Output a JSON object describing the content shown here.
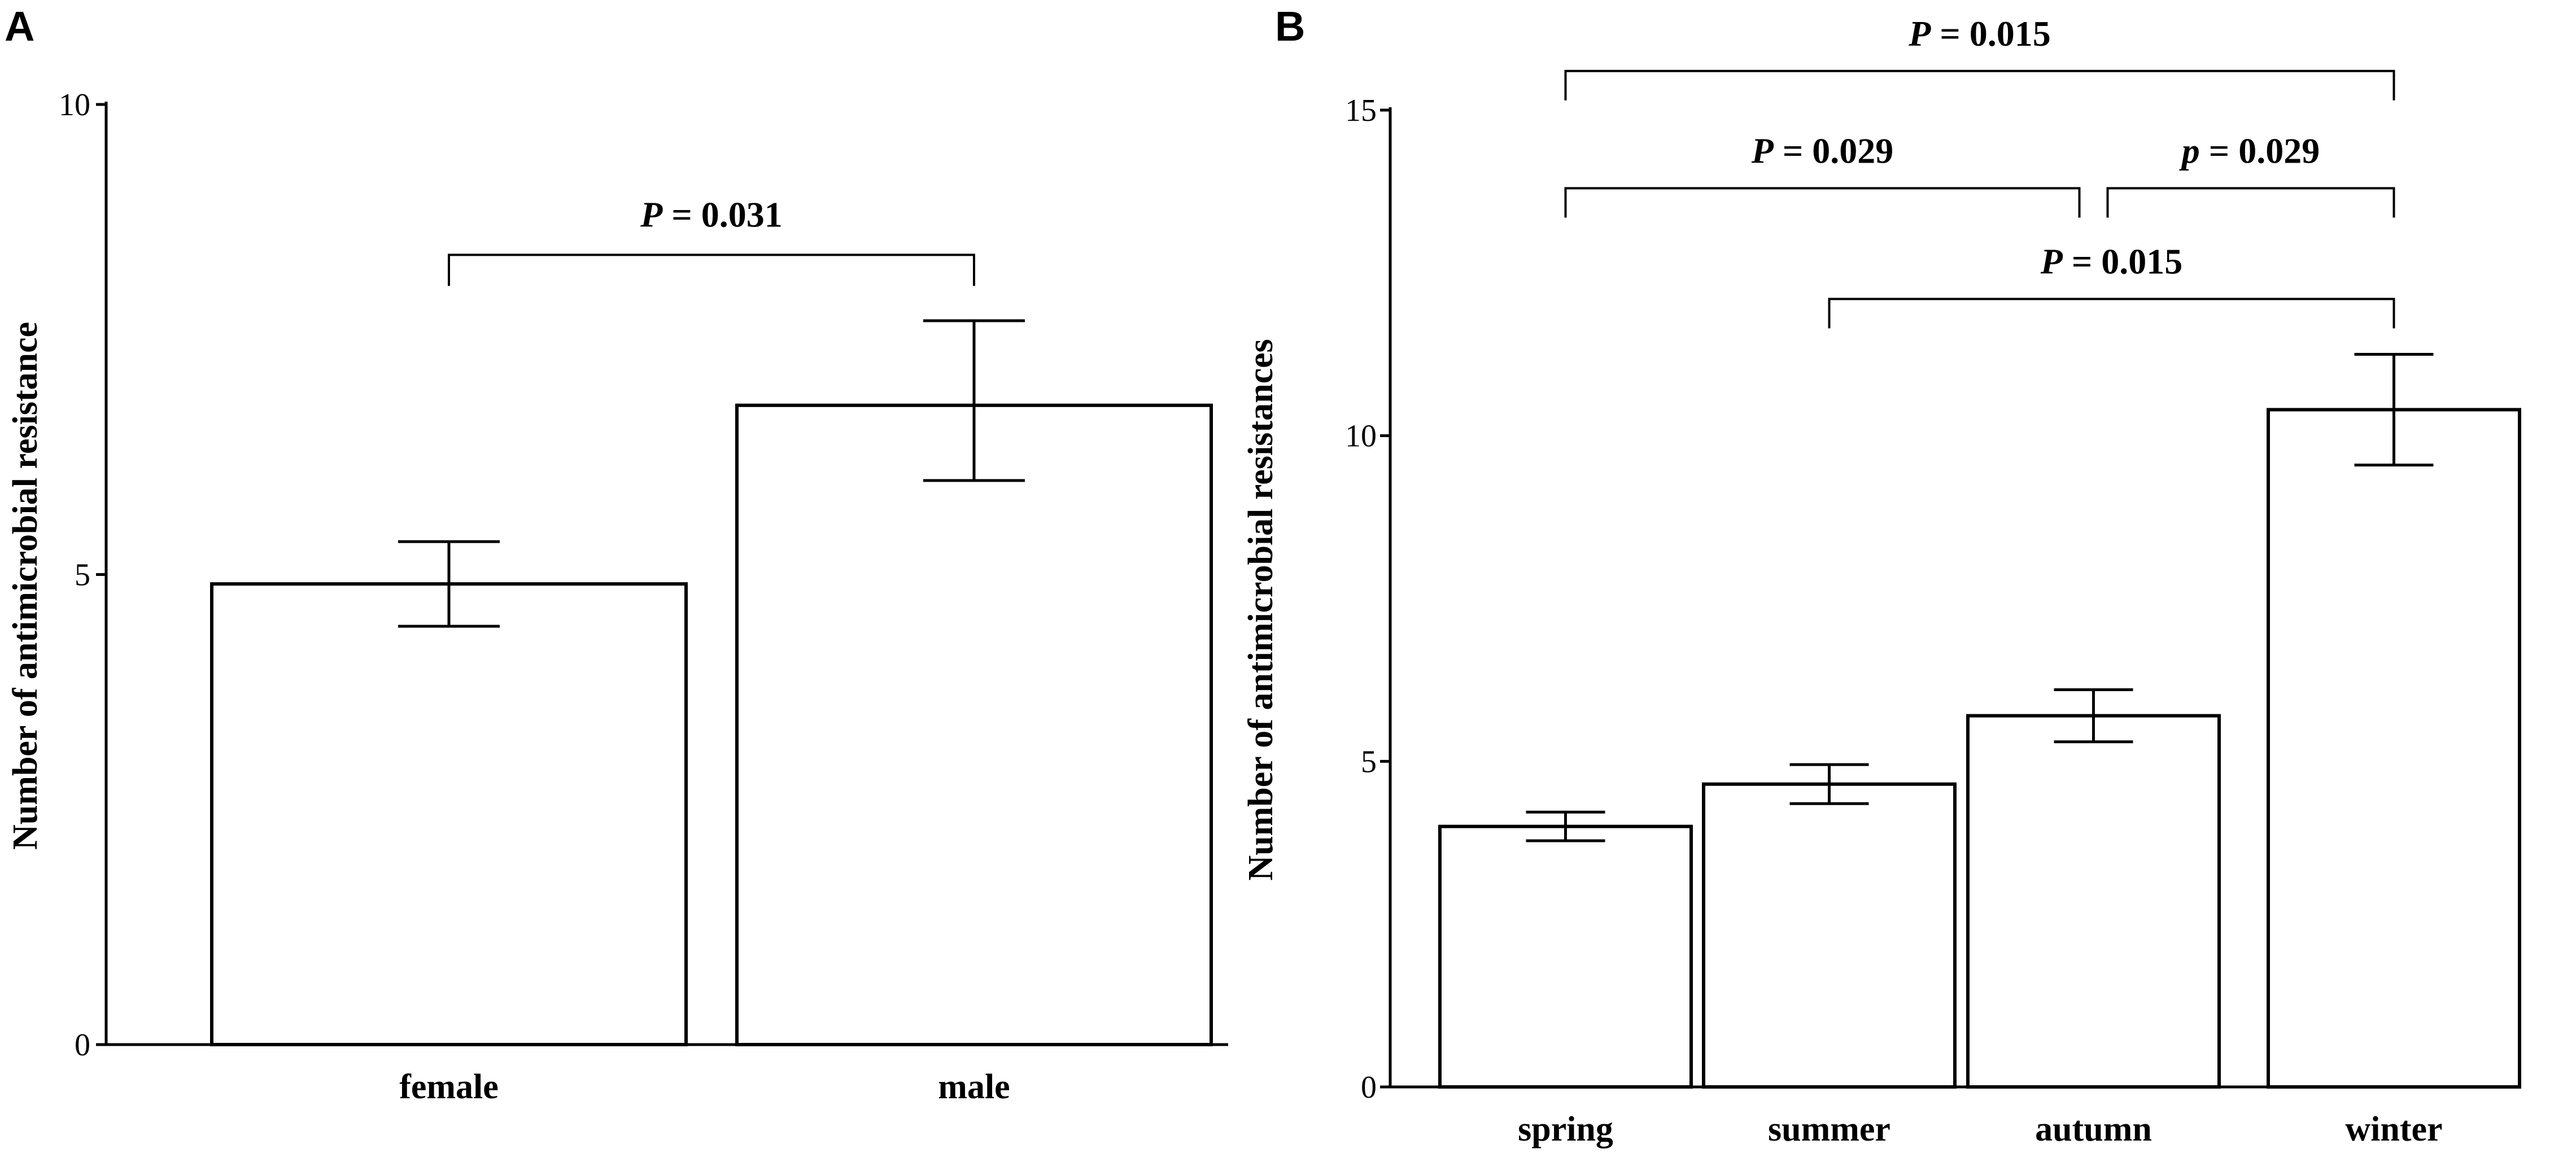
{
  "chart_data": [
    {
      "panel": "A",
      "type": "bar",
      "ylabel": "Number of antimicrobial resistance",
      "ylim": [
        0,
        10
      ],
      "yticks": [
        0,
        5,
        10
      ],
      "categories": [
        "female",
        "male"
      ],
      "values": [
        4.9,
        6.8
      ],
      "errors": [
        {
          "low": 4.45,
          "high": 5.35
        },
        {
          "low": 6.0,
          "high": 7.7
        }
      ],
      "annotations": [
        {
          "from": 0,
          "to": 1,
          "y": 8.4,
          "var": "P",
          "text": " = 0.031"
        }
      ]
    },
    {
      "panel": "B",
      "type": "bar",
      "ylabel": "Number of antimicrobial resistances",
      "ylim": [
        0,
        15
      ],
      "yticks": [
        0,
        5,
        10,
        15
      ],
      "categories": [
        "spring",
        "summer",
        "autumn",
        "winter"
      ],
      "values": [
        4.0,
        4.65,
        5.7,
        10.4
      ],
      "errors": [
        {
          "low": 3.78,
          "high": 4.22
        },
        {
          "low": 4.35,
          "high": 4.95
        },
        {
          "low": 5.3,
          "high": 6.1
        },
        {
          "low": 9.55,
          "high": 11.25
        }
      ],
      "annotations": [
        {
          "from": 0,
          "to": 3,
          "y": 15.6,
          "var": "P",
          "text": " = 0.015"
        },
        {
          "from": 0,
          "to": 2,
          "y": 13.8,
          "var": "P",
          "text": " = 0.029"
        },
        {
          "from": 2,
          "to": 3,
          "y": 13.8,
          "var": "p",
          "text": " = 0.029"
        },
        {
          "from": 1,
          "to": 3,
          "y": 12.1,
          "var": "P",
          "text": " = 0.015"
        }
      ]
    }
  ]
}
